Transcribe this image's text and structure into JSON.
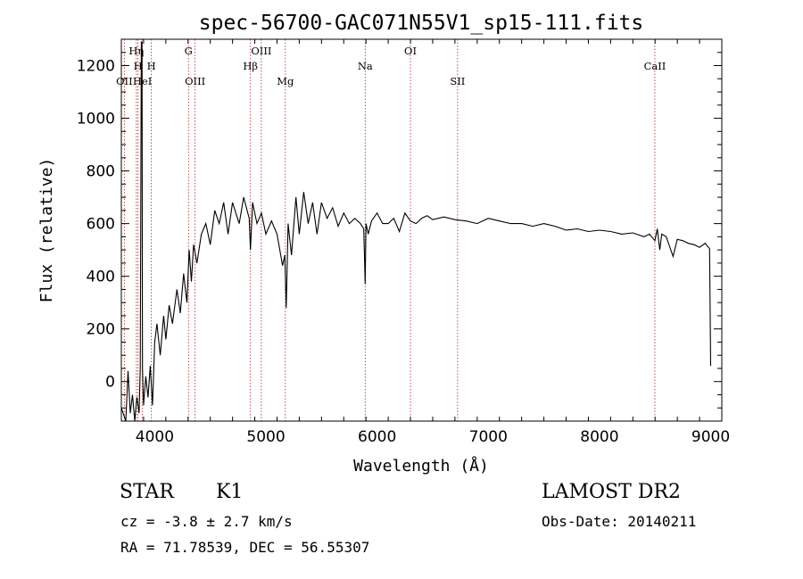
{
  "chart_data": {
    "type": "line",
    "title": "spec-56700-GAC071N55V1_sp15-111.fits",
    "xlabel": "Wavelength (Å)",
    "ylabel": "Flux (relative)",
    "xlim": [
      3700,
      9100
    ],
    "ylim": [
      -150,
      1300
    ],
    "xticks": [
      4000,
      5000,
      6000,
      7000,
      8000,
      9000
    ],
    "yticks": [
      0,
      200,
      400,
      600,
      800,
      1000,
      1200
    ],
    "grid": false,
    "line_color": "#000000",
    "marker_color": "#b22222",
    "spectrum": {
      "x": [
        3700,
        3740,
        3760,
        3780,
        3800,
        3820,
        3840,
        3860,
        3870,
        3880,
        3885,
        3890,
        3900,
        3920,
        3940,
        3960,
        3980,
        4000,
        4020,
        4050,
        4080,
        4100,
        4130,
        4160,
        4200,
        4230,
        4260,
        4290,
        4310,
        4330,
        4350,
        4380,
        4420,
        4460,
        4500,
        4540,
        4580,
        4620,
        4660,
        4700,
        4760,
        4800,
        4850,
        4861,
        4880,
        4920,
        4960,
        5000,
        5050,
        5100,
        5150,
        5170,
        5183,
        5200,
        5230,
        5270,
        5300,
        5340,
        5380,
        5420,
        5460,
        5500,
        5550,
        5600,
        5650,
        5700,
        5750,
        5800,
        5850,
        5880,
        5893,
        5900,
        5920,
        5950,
        6000,
        6050,
        6100,
        6150,
        6200,
        6250,
        6300,
        6350,
        6400,
        6450,
        6500,
        6600,
        6700,
        6800,
        6900,
        7000,
        7100,
        7200,
        7300,
        7400,
        7500,
        7600,
        7700,
        7800,
        7900,
        8000,
        8100,
        8200,
        8300,
        8400,
        8450,
        8498,
        8520,
        8542,
        8560,
        8600,
        8662,
        8700,
        8750,
        8800,
        8850,
        8900,
        8950,
        8990,
        9000
      ],
      "y": [
        -100,
        -150,
        40,
        -120,
        -50,
        -150,
        -60,
        -120,
        50,
        1290,
        1290,
        50,
        -90,
        20,
        -60,
        60,
        -90,
        150,
        220,
        100,
        250,
        160,
        290,
        220,
        350,
        260,
        410,
        300,
        500,
        380,
        520,
        450,
        560,
        600,
        520,
        650,
        600,
        680,
        560,
        680,
        600,
        700,
        620,
        500,
        680,
        600,
        640,
        560,
        610,
        560,
        440,
        480,
        280,
        600,
        480,
        700,
        560,
        720,
        600,
        680,
        560,
        680,
        620,
        660,
        590,
        640,
        600,
        620,
        600,
        580,
        370,
        600,
        560,
        610,
        640,
        600,
        600,
        620,
        570,
        640,
        610,
        600,
        620,
        630,
        615,
        625,
        615,
        610,
        600,
        620,
        610,
        600,
        600,
        590,
        600,
        590,
        575,
        580,
        570,
        575,
        570,
        560,
        565,
        550,
        560,
        535,
        580,
        500,
        560,
        550,
        475,
        540,
        535,
        525,
        520,
        510,
        525,
        505,
        60
      ]
    },
    "lines": [
      {
        "label": "Hη",
        "x": 3835,
        "row": 1
      },
      {
        "label": "CaII H",
        "x": 3850,
        "row": 2,
        "text": "H"
      },
      {
        "label": "H",
        "x": 3970,
        "row": 2
      },
      {
        "label": "OII",
        "x": 3727,
        "row": 3
      },
      {
        "label": "HeI",
        "x": 3889,
        "row": 3
      },
      {
        "label": "G",
        "x": 4304,
        "row": 1
      },
      {
        "label": "OIII",
        "x": 4363,
        "row": 3
      },
      {
        "label": "Hβ",
        "x": 4861,
        "row": 2
      },
      {
        "label": "OIII",
        "x": 4959,
        "row": 1
      },
      {
        "label": "Mg",
        "x": 5175,
        "row": 3
      },
      {
        "label": "Na",
        "x": 5893,
        "row": 2
      },
      {
        "label": "OI",
        "x": 6300,
        "row": 1
      },
      {
        "label": "SII",
        "x": 6724,
        "row": 3
      },
      {
        "label": "CaII",
        "x": 8498,
        "row": 2
      }
    ]
  },
  "info": {
    "object_class": "STAR",
    "subclass": "K1",
    "redshift": "cz = -3.8 ± 2.7 km/s",
    "coords": "RA =  71.78539, DEC =  56.55307",
    "survey": "LAMOST DR2",
    "obs_date": "Obs-Date: 20140211"
  }
}
